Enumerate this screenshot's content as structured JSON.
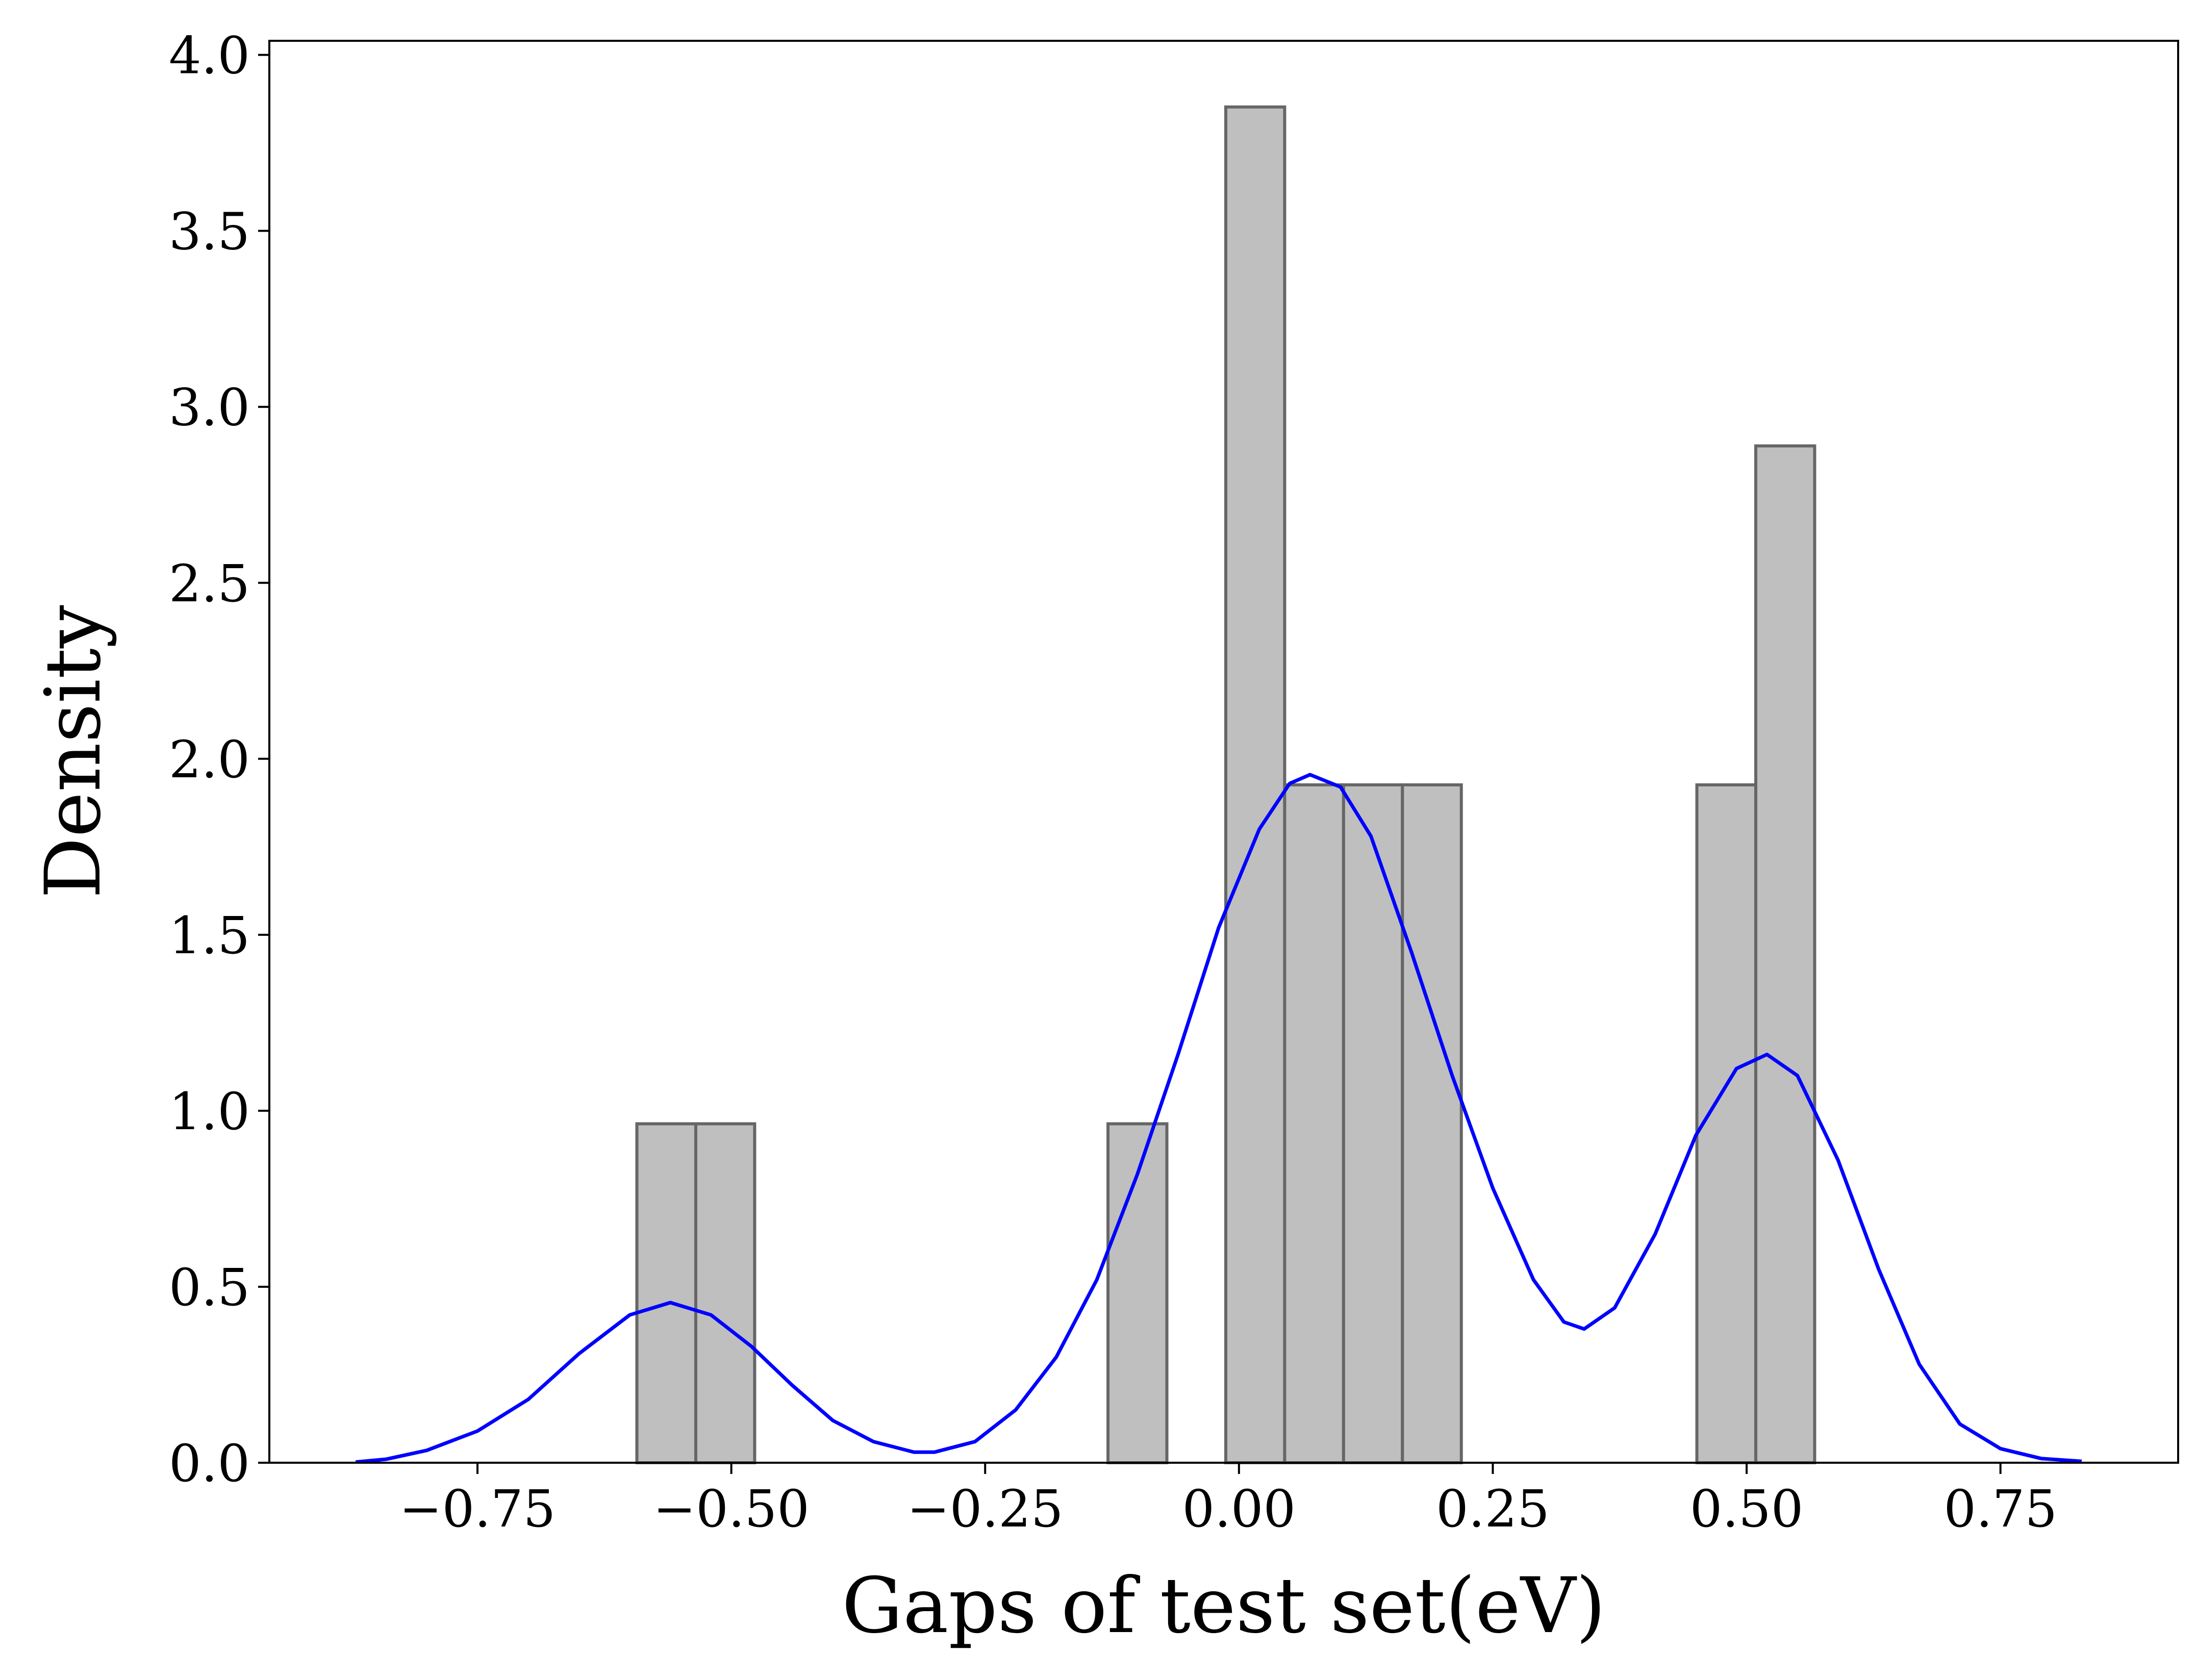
{
  "chart_data": {
    "type": "bar",
    "title": "",
    "xlabel": "Gaps of test set(eV)",
    "ylabel": "Density",
    "xlim": [
      -0.955,
      0.925
    ],
    "ylim": [
      0,
      4.04
    ],
    "xticks": [
      -0.75,
      -0.5,
      -0.25,
      0.0,
      0.25,
      0.5,
      0.75
    ],
    "xtick_labels": [
      "−0.75",
      "−0.50",
      "−0.25",
      "0.00",
      "0.25",
      "0.50",
      "0.75"
    ],
    "yticks": [
      0.0,
      0.5,
      1.0,
      1.5,
      2.0,
      2.5,
      3.0,
      3.5,
      4.0
    ],
    "ytick_labels": [
      "0.0",
      "0.5",
      "1.0",
      "1.5",
      "2.0",
      "2.5",
      "3.0",
      "3.5",
      "4.0"
    ],
    "grid": false,
    "histogram": {
      "bin_width": 0.058,
      "bins": [
        {
          "x0": -0.593,
          "x1": -0.535,
          "density": 0.963
        },
        {
          "x0": -0.535,
          "x1": -0.477,
          "density": 0.963
        },
        {
          "x0": -0.129,
          "x1": -0.071,
          "density": 0.963
        },
        {
          "x0": -0.013,
          "x1": 0.045,
          "density": 3.852
        },
        {
          "x0": 0.045,
          "x1": 0.103,
          "density": 1.926
        },
        {
          "x0": 0.103,
          "x1": 0.161,
          "density": 1.926
        },
        {
          "x0": 0.161,
          "x1": 0.219,
          "density": 1.926
        },
        {
          "x0": 0.451,
          "x1": 0.509,
          "density": 1.926
        },
        {
          "x0": 0.509,
          "x1": 0.567,
          "density": 2.889
        }
      ],
      "fill_color": "#bfbfbf",
      "edge_color": "#666666"
    },
    "kde": {
      "color": "#0000ff",
      "points": [
        [
          -0.87,
          0.002
        ],
        [
          -0.84,
          0.01
        ],
        [
          -0.8,
          0.035
        ],
        [
          -0.75,
          0.09
        ],
        [
          -0.7,
          0.18
        ],
        [
          -0.65,
          0.31
        ],
        [
          -0.6,
          0.42
        ],
        [
          -0.56,
          0.455
        ],
        [
          -0.52,
          0.42
        ],
        [
          -0.48,
          0.33
        ],
        [
          -0.44,
          0.22
        ],
        [
          -0.4,
          0.12
        ],
        [
          -0.36,
          0.06
        ],
        [
          -0.32,
          0.03
        ],
        [
          -0.3,
          0.03
        ],
        [
          -0.26,
          0.06
        ],
        [
          -0.22,
          0.15
        ],
        [
          -0.18,
          0.3
        ],
        [
          -0.14,
          0.52
        ],
        [
          -0.1,
          0.82
        ],
        [
          -0.06,
          1.16
        ],
        [
          -0.02,
          1.52
        ],
        [
          0.02,
          1.8
        ],
        [
          0.05,
          1.93
        ],
        [
          0.07,
          1.955
        ],
        [
          0.1,
          1.92
        ],
        [
          0.13,
          1.78
        ],
        [
          0.17,
          1.45
        ],
        [
          0.21,
          1.1
        ],
        [
          0.25,
          0.78
        ],
        [
          0.29,
          0.52
        ],
        [
          0.32,
          0.4
        ],
        [
          0.34,
          0.38
        ],
        [
          0.37,
          0.44
        ],
        [
          0.41,
          0.65
        ],
        [
          0.45,
          0.93
        ],
        [
          0.49,
          1.12
        ],
        [
          0.52,
          1.16
        ],
        [
          0.55,
          1.1
        ],
        [
          0.59,
          0.86
        ],
        [
          0.63,
          0.55
        ],
        [
          0.67,
          0.28
        ],
        [
          0.71,
          0.11
        ],
        [
          0.75,
          0.04
        ],
        [
          0.79,
          0.012
        ],
        [
          0.83,
          0.004
        ]
      ]
    }
  }
}
